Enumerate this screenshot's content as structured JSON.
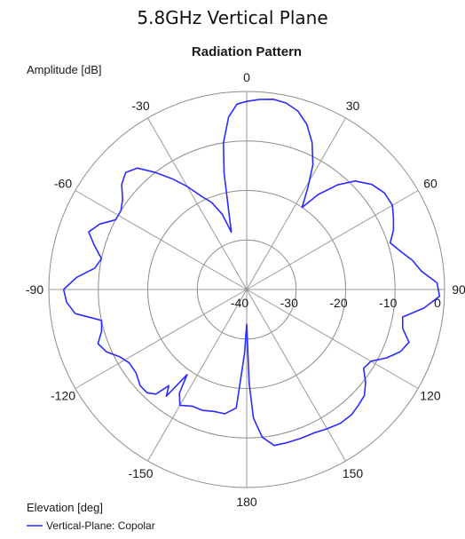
{
  "figure_title": "5.8GHz Vertical Plane",
  "chart_data": {
    "type": "polar-line",
    "title": "Radiation Pattern",
    "radial_label": "Amplitude [dB]",
    "angular_label": "Elevation [deg]",
    "radial_range": [
      -40,
      0
    ],
    "radial_ticks": [
      -40,
      -30,
      -20,
      -10,
      0
    ],
    "angle_ticks": [
      0,
      30,
      60,
      90,
      120,
      150,
      180,
      -150,
      -120,
      -90,
      -60,
      -30
    ],
    "angle_zero": "top",
    "angle_direction": "clockwise",
    "grid": true,
    "legend_position": "bottom-left",
    "series": [
      {
        "name": "Vertical-Plane: Copolar",
        "color": "#2b2bff",
        "theta": [
          0,
          4,
          8,
          12,
          16,
          20,
          24,
          28,
          31,
          34,
          37,
          41,
          45,
          50,
          55,
          60,
          64,
          68,
          72,
          76,
          80,
          84,
          88,
          92,
          96,
          100,
          104,
          108,
          112,
          116,
          120,
          124,
          128,
          132,
          136,
          140,
          145,
          150,
          155,
          160,
          165,
          170,
          174,
          177,
          178.5,
          180,
          182,
          185,
          190,
          195,
          200,
          205,
          210,
          213,
          215,
          217,
          219,
          221,
          224,
          228,
          233,
          238,
          242,
          246,
          250,
          254,
          258,
          262,
          266,
          270,
          274,
          278,
          282,
          286,
          290,
          294,
          298,
          302,
          306,
          310,
          314,
          318,
          322,
          326,
          330,
          334,
          338,
          342,
          345,
          347,
          349,
          351,
          354,
          357
        ],
        "values": [
          -2,
          -1.5,
          -1.2,
          -1.5,
          -2.5,
          -4.5,
          -7.5,
          -11.5,
          -16,
          -20,
          -16,
          -12,
          -9,
          -7,
          -6,
          -6,
          -7,
          -8,
          -9.5,
          -8,
          -6,
          -4.5,
          -1.5,
          -1,
          -4,
          -8,
          -7.5,
          -5.5,
          -6.5,
          -8.5,
          -11,
          -11.5,
          -9.5,
          -8,
          -7.5,
          -7,
          -7,
          -7.5,
          -8,
          -8,
          -8,
          -8,
          -10,
          -14,
          -21,
          -33,
          -27,
          -16,
          -14.5,
          -14.5,
          -14,
          -14,
          -13,
          -15,
          -19,
          -13,
          -15,
          -12,
          -11,
          -11,
          -12,
          -12,
          -11,
          -9,
          -8,
          -9.5,
          -10,
          -5,
          -3.5,
          -3,
          -5.5,
          -9,
          -10,
          -8,
          -6,
          -7.5,
          -10,
          -10,
          -9,
          -7,
          -6,
          -7,
          -10,
          -13,
          -16,
          -19,
          -21,
          -24,
          -28,
          -24,
          -16,
          -10,
          -5,
          -2.5
        ]
      }
    ]
  }
}
